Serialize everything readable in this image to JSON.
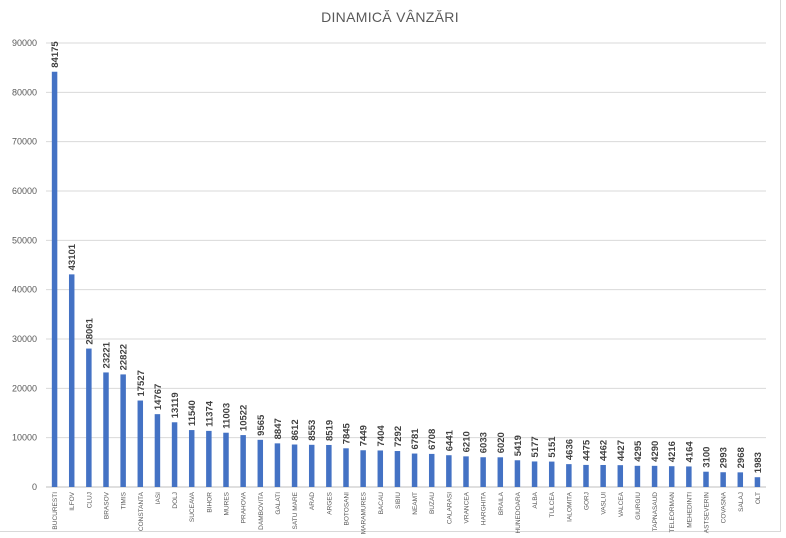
{
  "chart_data": {
    "type": "bar",
    "title": "DINAMICĂ VÂNZĂRI",
    "xlabel": "",
    "ylabel": "",
    "ylim": [
      0,
      90000
    ],
    "yticks": [
      0,
      10000,
      20000,
      30000,
      40000,
      50000,
      60000,
      70000,
      80000,
      90000
    ],
    "grid": true,
    "legend": "none",
    "bar_color": "#4472c4",
    "categories": [
      "BUCURESTI",
      "ILFOV",
      "CLUJ",
      "BRASOV",
      "TIMIS",
      "CONSTANTA",
      "IASI",
      "DOLJ",
      "SUCEAVA",
      "BIHOR",
      "MURES",
      "PRAHOVA",
      "DAMBOVITA",
      "GALATI",
      "SATU MARE",
      "ARAD",
      "ARGES",
      "BOTOSANI",
      "MARAMURES",
      "BACAU",
      "SIBIU",
      "NEAMT",
      "BUZAU",
      "CALARASI",
      "VRANCEA",
      "HARGHITA",
      "BRAILA",
      "HUNEDOARA",
      "ALBA",
      "TULCEA",
      "IALOMITA",
      "GORJ",
      "VASLUI",
      "VALCEA",
      "GIURGIU",
      "TAPNASAUD",
      "TELEORMAN",
      "MEHEDINTI",
      "ASTSEVERIN",
      "COVASNA",
      "SALAJ",
      "OLT"
    ],
    "values": [
      84175,
      43101,
      28061,
      23221,
      22822,
      17527,
      14767,
      13119,
      11540,
      11374,
      11003,
      10522,
      9565,
      8847,
      8612,
      8553,
      8519,
      7845,
      7449,
      7404,
      7292,
      6781,
      6708,
      6441,
      6210,
      6033,
      6020,
      5419,
      5177,
      5151,
      4636,
      4475,
      4462,
      4427,
      4295,
      4290,
      4216,
      4164,
      3100,
      2993,
      2968,
      1983
    ]
  }
}
